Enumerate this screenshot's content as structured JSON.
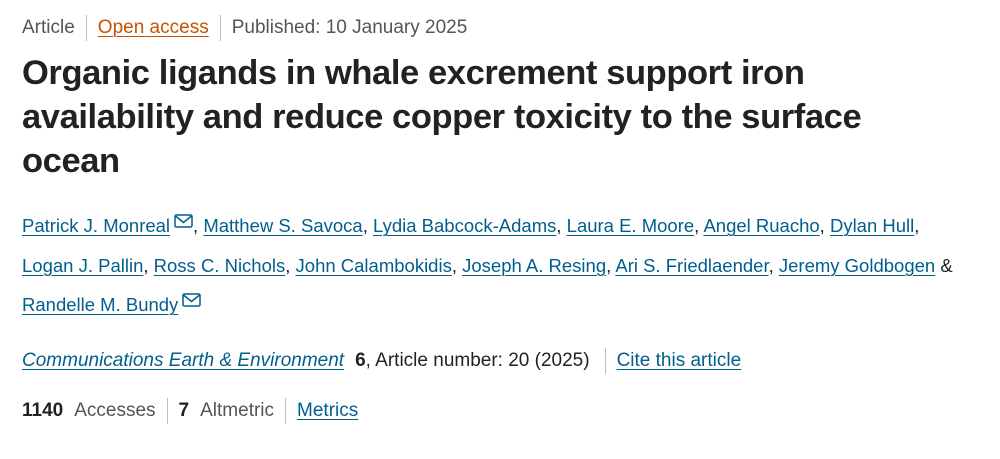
{
  "meta": {
    "type": "Article",
    "access": "Open access",
    "published": "Published: 10 January 2025"
  },
  "title": "Organic ligands in whale excrement support iron availability and reduce copper toxicity to the surface ocean",
  "authors": [
    {
      "name": "Patrick J. Monreal",
      "email": true,
      "separator": ","
    },
    {
      "name": "Matthew S. Savoca",
      "separator": ","
    },
    {
      "name": "Lydia Babcock-Adams",
      "separator": ","
    },
    {
      "name": "Laura E. Moore",
      "separator": ","
    },
    {
      "name": "Angel Ruacho",
      "separator": ","
    },
    {
      "name": "Dylan Hull",
      "separator": ","
    },
    {
      "name": "Logan J. Pallin",
      "separator": ","
    },
    {
      "name": "Ross C. Nichols",
      "separator": ","
    },
    {
      "name": "John Calambokidis",
      "separator": ","
    },
    {
      "name": "Joseph A. Resing",
      "separator": ","
    },
    {
      "name": "Ari S. Friedlaender",
      "separator": ","
    },
    {
      "name": "Jeremy Goldbogen",
      "separator": "&"
    },
    {
      "name": "Randelle M. Bundy",
      "email": true
    }
  ],
  "citation": {
    "journal": "Communications Earth & Environment",
    "volume": 6,
    "details": ", Article number: 20 (2025)",
    "cite": "Cite this article"
  },
  "metrics": {
    "accesses": 1140,
    "accesses_label": "Accesses",
    "altmetric": 7,
    "altmetric_label": "Altmetric",
    "link": "Metrics"
  }
}
